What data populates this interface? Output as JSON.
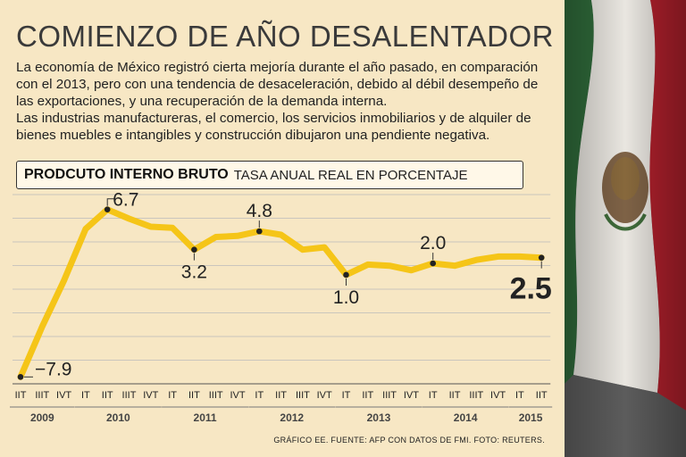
{
  "title": "COMIENZO DE AÑO DESALENTADOR",
  "intro_paragraphs": [
    "La economía de México registró cierta mejoría durante el año pasado, en comparación con el 2013, pero con una tendencia de desaceleración, debido al débil desempeño de las exportaciones, y una recuperación de la demanda interna.",
    "Las industrias manufactureras, el comercio, los servicios inmobiliarios y de alquiler de bienes muebles e intangibles y construcción dibujaron una pendiente negativa."
  ],
  "chart_header": {
    "strong": "PRODCUTO INTERNO BRUTO",
    "sub": "TASA ANUAL REAL EN PORCENTAJE"
  },
  "credit": "GRÁFICO EE. FUENTE: AFP CON DATOS DE FMI. FOTO: REUTERS.",
  "colors": {
    "background": "#f7e7c4",
    "line": "#f5c518",
    "text": "#222222",
    "grid": "#bbbbbb"
  },
  "chart_data": {
    "type": "line",
    "title": "PRODCUTO INTERNO BRUTO",
    "subtitle": "TASA ANUAL REAL EN PORCENTAJE",
    "xlabel": "",
    "ylabel": "",
    "categories": [
      "IIT",
      "IIIT",
      "IVT",
      "IT",
      "IIT",
      "IIIT",
      "IVT",
      "IT",
      "IIT",
      "IIIT",
      "IVT",
      "IT",
      "IIT",
      "IIIT",
      "IVT",
      "IT",
      "IIT",
      "IIIT",
      "IVT",
      "IT",
      "IIT",
      "IIIT",
      "IVT",
      "IT",
      "IIT"
    ],
    "years": [
      {
        "label": "2009",
        "start": 0,
        "end": 2
      },
      {
        "label": "2010",
        "start": 3,
        "end": 6
      },
      {
        "label": "2011",
        "start": 7,
        "end": 10
      },
      {
        "label": "2012",
        "start": 11,
        "end": 14
      },
      {
        "label": "2013",
        "start": 15,
        "end": 18
      },
      {
        "label": "2014",
        "start": 19,
        "end": 22
      },
      {
        "label": "2015",
        "start": 23,
        "end": 24
      }
    ],
    "values": [
      -7.9,
      -3.5,
      0.5,
      5.0,
      6.7,
      5.9,
      5.2,
      5.1,
      3.2,
      4.3,
      4.4,
      4.8,
      4.5,
      3.2,
      3.4,
      1.0,
      1.9,
      1.8,
      1.4,
      2.0,
      1.8,
      2.3,
      2.6,
      2.6,
      2.5
    ],
    "labeled_points": [
      {
        "index": 0,
        "label": "−7.9",
        "pos": "right"
      },
      {
        "index": 4,
        "label": "6.7",
        "pos": "right-above"
      },
      {
        "index": 8,
        "label": "3.2",
        "pos": "below"
      },
      {
        "index": 11,
        "label": "4.8",
        "pos": "above"
      },
      {
        "index": 15,
        "label": "1.0",
        "pos": "below"
      },
      {
        "index": 19,
        "label": "2.0",
        "pos": "above"
      },
      {
        "index": 24,
        "label": "2.5",
        "pos": "below-bold"
      }
    ],
    "ylim": [
      -8.5,
      8
    ],
    "grid": true
  }
}
